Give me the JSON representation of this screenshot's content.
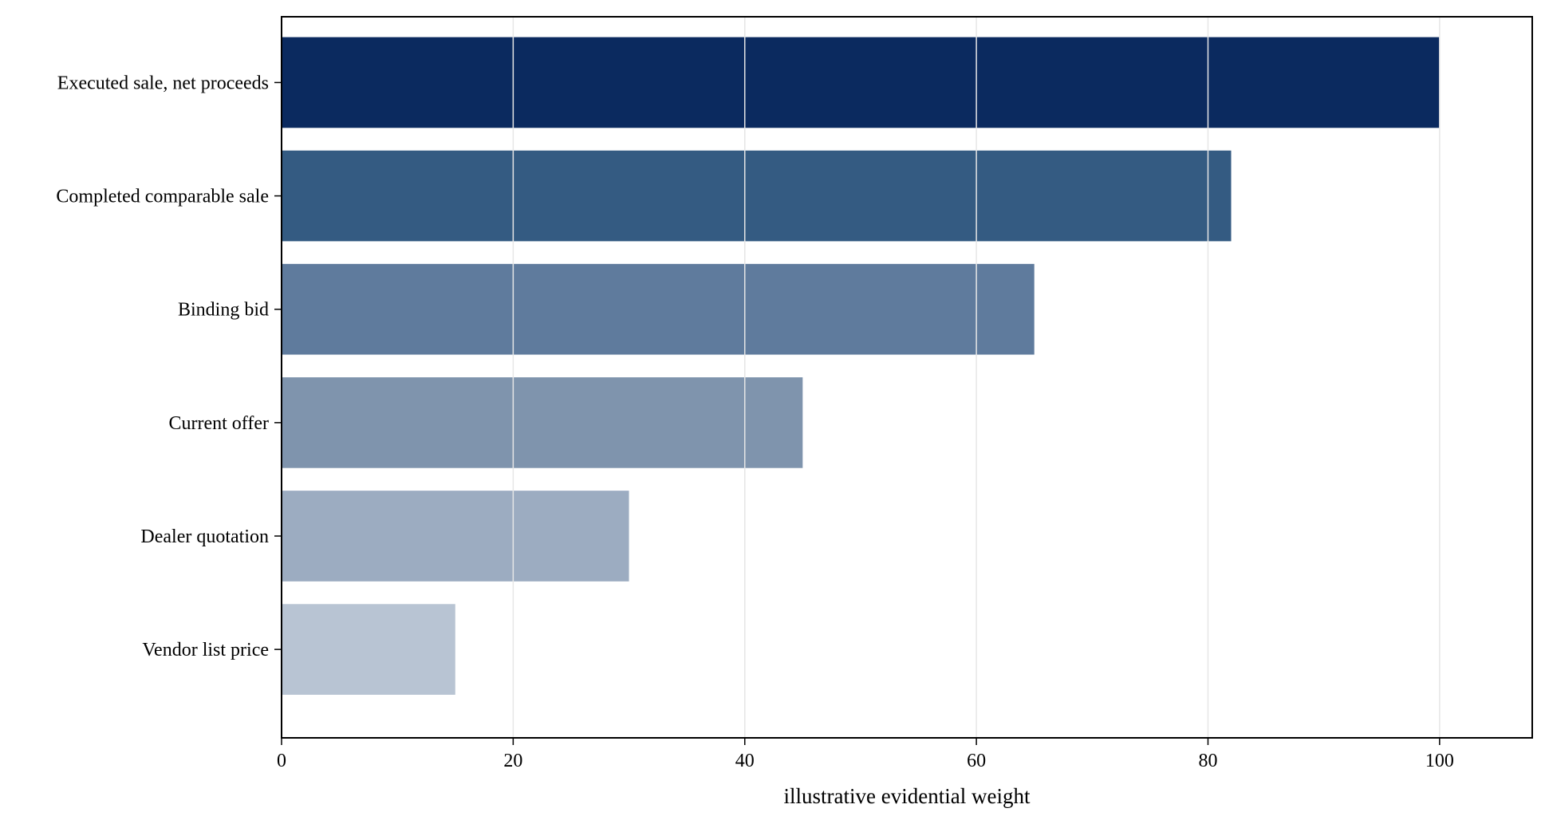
{
  "chart_data": {
    "type": "bar",
    "orientation": "horizontal",
    "title": "",
    "xlabel": "illustrative evidential weight",
    "ylabel": "",
    "categories": [
      "Executed sale, net proceeds",
      "Completed comparable sale",
      "Binding bid",
      "Current offer",
      "Dealer quotation",
      "Vendor list price"
    ],
    "values": [
      100,
      82,
      65,
      45,
      30,
      15
    ],
    "colors": [
      "#0b2a5f",
      "#345b82",
      "#5f7b9d",
      "#7f94ad",
      "#9cacc1",
      "#b8c4d3"
    ],
    "xlim": [
      0,
      108
    ],
    "xticks": [
      0,
      20,
      40,
      60,
      80,
      100
    ],
    "grid": "vertical",
    "legend": "none"
  }
}
